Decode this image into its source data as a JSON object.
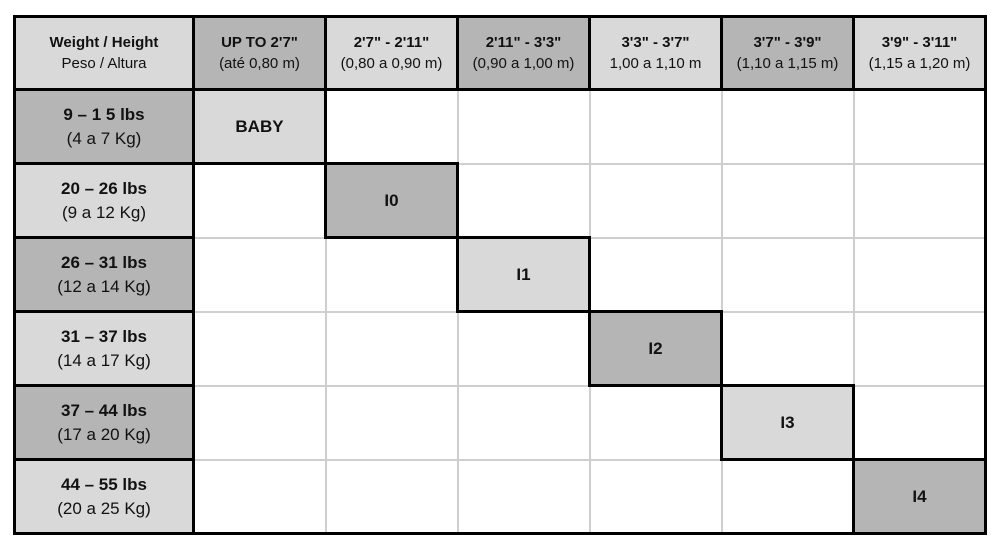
{
  "colors": {
    "cell_light": "#d9d9d9",
    "cell_dark": "#b5b5b5",
    "cell_empty": "#ffffff",
    "grid_line": "#cfcfcf",
    "black_border": "#000000",
    "text": "#111111",
    "page_background": "#ffffff"
  },
  "chart_data": {
    "type": "table",
    "layout": "7 columns x 7 rows; highlighted size cells run diagonally; shaded cells alternate light/dark gray with black borders; empty cells white with light gray gridlines",
    "header": [
      {
        "line1": "Weight / Height",
        "line2": "Peso / Altura"
      },
      {
        "line1": "UP TO 2'7\"",
        "line2": "(até 0,80 m)"
      },
      {
        "line1": "2'7\" - 2'11\"",
        "line2": "(0,80 a 0,90 m)"
      },
      {
        "line1": "2'11\" - 3'3\"",
        "line2": "(0,90 a 1,00 m)"
      },
      {
        "line1": "3'3\" - 3'7\"",
        "line2": "1,00 a 1,10 m"
      },
      {
        "line1": "3'7\" - 3'9\"",
        "line2": "(1,10 a 1,15 m)"
      },
      {
        "line1": "3'9\" - 3'11\"",
        "line2": "(1,15 a 1,20 m)"
      }
    ],
    "rows": [
      {
        "label1": "9 – 1 5 lbs",
        "label2": "(4 a 7 Kg)",
        "size": "BABY",
        "size_column": 1
      },
      {
        "label1": "20 – 26 lbs",
        "label2": "(9 a 12 Kg)",
        "size": "I0",
        "size_column": 2
      },
      {
        "label1": "26 – 31 lbs",
        "label2": "(12 a 14 Kg)",
        "size": "I1",
        "size_column": 3
      },
      {
        "label1": "31 – 37 lbs",
        "label2": "(14 a 17 Kg)",
        "size": "I2",
        "size_column": 4
      },
      {
        "label1": "37 – 44 lbs",
        "label2": "(17 a 20 Kg)",
        "size": "I3",
        "size_column": 5
      },
      {
        "label1": "44 – 55 lbs",
        "label2": "(20 a 25 Kg)",
        "size": "I4",
        "size_column": 6
      }
    ]
  }
}
